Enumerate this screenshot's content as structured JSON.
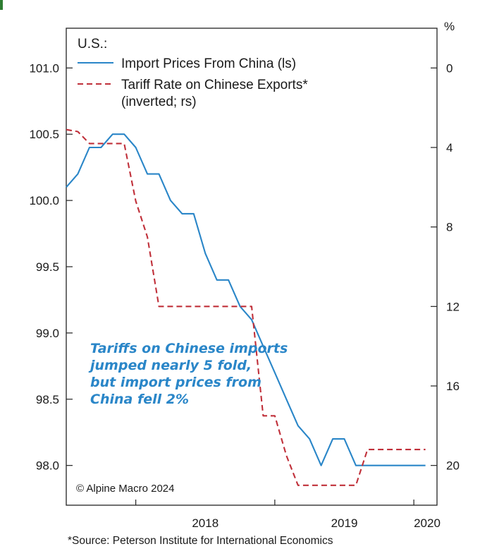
{
  "chart_data": {
    "type": "line",
    "title": "U.S.:",
    "x_ticks": [
      "2018",
      "2019",
      "2020"
    ],
    "y_left": {
      "ticks": [
        "101.0",
        "100.5",
        "100.0",
        "99.5",
        "99.0",
        "98.5",
        "98.0"
      ],
      "ylim": [
        97.7,
        101.3
      ]
    },
    "y_right": {
      "unit": "%",
      "ticks": [
        "0",
        "4",
        "8",
        "12",
        "16",
        "20"
      ],
      "ylim": [
        -2,
        22
      ],
      "inverted": true
    },
    "x_range": [
      "2017-07",
      "2020-03"
    ],
    "series": [
      {
        "name": "Import Prices From China (ls)",
        "axis": "left",
        "color": "#2a86c8",
        "dash": "solid",
        "x": [
          "2017-07",
          "2017-08",
          "2017-09",
          "2017-10",
          "2017-11",
          "2017-12",
          "2018-01",
          "2018-02",
          "2018-03",
          "2018-04",
          "2018-05",
          "2018-06",
          "2018-07",
          "2018-08",
          "2018-09",
          "2018-10",
          "2018-11",
          "2018-12",
          "2019-01",
          "2019-02",
          "2019-03",
          "2019-04",
          "2019-05",
          "2019-06",
          "2019-07",
          "2019-08",
          "2019-09",
          "2019-10",
          "2019-11",
          "2019-12",
          "2020-01",
          "2020-02"
        ],
        "values": [
          100.1,
          100.2,
          100.4,
          100.4,
          100.5,
          100.5,
          100.4,
          100.2,
          100.2,
          100.0,
          99.9,
          99.9,
          99.6,
          99.4,
          99.4,
          99.2,
          99.1,
          98.9,
          98.7,
          98.5,
          98.3,
          98.2,
          98.0,
          98.2,
          98.2,
          98.0,
          98.0,
          98.0,
          98.0,
          98.0,
          98.0,
          98.0
        ]
      },
      {
        "name": "Tariff Rate on Chinese Exports* (inverted; rs)",
        "axis": "right",
        "color": "#c0303a",
        "dash": "dashed",
        "x": [
          "2017-07",
          "2017-08",
          "2017-09",
          "2017-10",
          "2017-11",
          "2017-12",
          "2018-01",
          "2018-02",
          "2018-03",
          "2018-04",
          "2018-05",
          "2018-06",
          "2018-07",
          "2018-08",
          "2018-09",
          "2018-10",
          "2018-11",
          "2018-12",
          "2019-01",
          "2019-02",
          "2019-03",
          "2019-04",
          "2019-05",
          "2019-06",
          "2019-07",
          "2019-08",
          "2019-09",
          "2019-10",
          "2019-11",
          "2019-12",
          "2020-01",
          "2020-02"
        ],
        "values": [
          3.1,
          3.2,
          3.8,
          3.8,
          3.8,
          3.8,
          6.7,
          8.5,
          12.0,
          12.0,
          12.0,
          12.0,
          12.0,
          12.0,
          12.0,
          12.0,
          12.0,
          17.5,
          17.5,
          19.5,
          21.0,
          21.0,
          21.0,
          21.0,
          21.0,
          21.0,
          19.2,
          19.2,
          19.2,
          19.2,
          19.2,
          19.2
        ]
      }
    ],
    "annotation": [
      "Tariffs on Chinese imports",
      "jumped nearly 5 fold,",
      "but import prices from",
      "China fell 2%"
    ],
    "copyright": "© Alpine Macro 2024",
    "legend_position": "top-left",
    "grid": false
  },
  "footer": {
    "source": "*Source: Peterson Institute for International Economics"
  }
}
